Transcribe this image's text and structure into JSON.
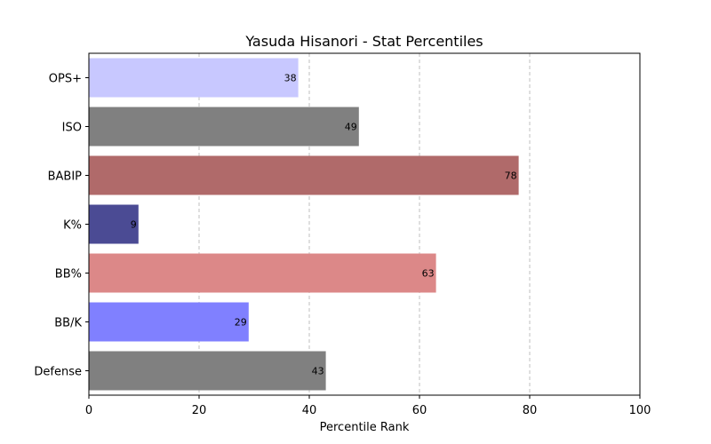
{
  "chart_data": {
    "type": "bar",
    "orientation": "horizontal",
    "title": "Yasuda Hisanori - Stat Percentiles",
    "xlabel": "Percentile Rank",
    "ylabel": "",
    "xlim": [
      0,
      100
    ],
    "xticks": [
      0,
      20,
      40,
      60,
      80,
      100
    ],
    "grid": "x-axis dashed",
    "categories": [
      "OPS+",
      "ISO",
      "BABIP",
      "K%",
      "BB%",
      "BB/K",
      "Defense"
    ],
    "values": [
      38,
      49,
      78,
      9,
      63,
      29,
      43
    ],
    "colors": [
      "#c8c8ff",
      "#808080",
      "#b06a6a",
      "#4b4b94",
      "#dc8888",
      "#8080ff",
      "#808080"
    ],
    "data_labels": [
      "38",
      "49",
      "78",
      "9",
      "63",
      "29",
      "43"
    ]
  }
}
